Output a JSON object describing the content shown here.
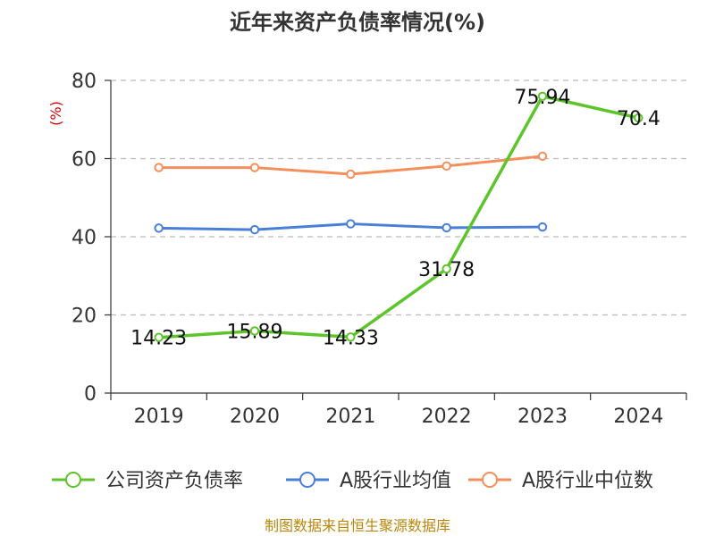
{
  "chart_data": {
    "type": "line",
    "title": "近年来资产负债率情况(%)",
    "ylabel": "(%)",
    "categories": [
      "2019",
      "2020",
      "2021",
      "2022",
      "2023",
      "2024"
    ],
    "ylim": [
      0,
      80
    ],
    "yticks": [
      0,
      20,
      40,
      60,
      80
    ],
    "grid": true,
    "legend_position": "bottom",
    "series": [
      {
        "name": "公司资产负债率",
        "color": "#5ec42b",
        "values": [
          14.23,
          15.89,
          14.33,
          31.78,
          75.94,
          70.4
        ],
        "labels": [
          "14.23",
          "15.89",
          "14.33",
          "31.78",
          "75.94",
          "70.4"
        ],
        "show_labels": true
      },
      {
        "name": "A股行业均值",
        "color": "#4a7fd8",
        "values": [
          42.2,
          41.8,
          43.3,
          42.3,
          42.5,
          null
        ],
        "show_labels": false
      },
      {
        "name": "A股行业中位数",
        "color": "#f58e5a",
        "values": [
          57.7,
          57.7,
          56.0,
          58.1,
          60.6,
          null
        ],
        "show_labels": false
      }
    ]
  },
  "source": "制图数据来自恒生聚源数据库"
}
